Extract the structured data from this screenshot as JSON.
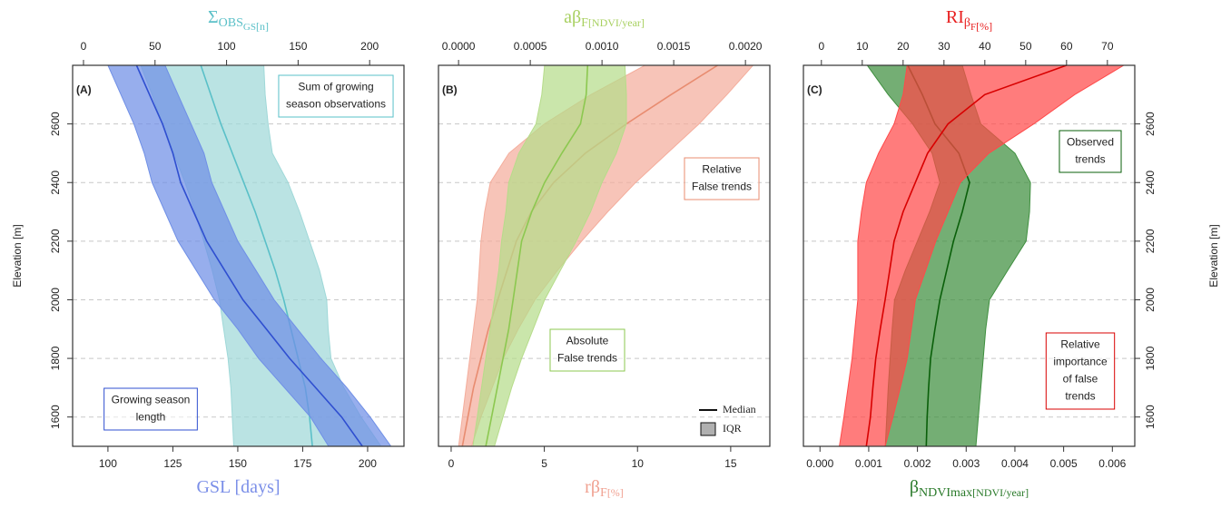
{
  "chart_data": [
    {
      "type": "band",
      "label": "(A)",
      "grid": true,
      "elevation": [
        1500,
        1600,
        1700,
        1800,
        1900,
        2000,
        2100,
        2200,
        2300,
        2400,
        2500,
        2600,
        2700,
        2800
      ],
      "ylim": [
        1500,
        2800
      ],
      "yticks": [
        1600,
        1800,
        2000,
        2200,
        2400,
        2600
      ],
      "ylabel": "Elevation [m]",
      "xlim": [
        86.4,
        214
      ],
      "xticks": [
        100,
        125,
        150,
        175,
        200
      ],
      "xlabel": [
        "GSL [days]"
      ],
      "xlabel_color": "#7b8fe8",
      "x2lim": [
        -7.6,
        224
      ],
      "x2ticks": [
        0,
        50,
        100,
        150,
        200
      ],
      "x2label": [
        "Σ",
        "OBS",
        "GS",
        "[n]"
      ],
      "x2label_color": "#5bc0c8",
      "series": [
        {
          "label": [
            "Sum of growing",
            "season observations"
          ],
          "axis": "x2",
          "color": "#9fd8d8",
          "median_color": "#5ac0c8",
          "low": [
            105,
            104,
            103,
            101,
            98,
            95,
            90,
            84,
            78,
            71,
            63,
            55,
            48,
            40
          ],
          "median": [
            160,
            158,
            155,
            150,
            145,
            140,
            134,
            127,
            120,
            112,
            104,
            96,
            89,
            82
          ],
          "high": [
            208,
            194,
            182,
            173,
            171,
            170,
            165,
            158,
            151,
            143,
            132,
            129,
            127,
            126
          ]
        },
        {
          "label": [
            "Growing season",
            "length"
          ],
          "axis": "x",
          "color": "#6f8fe6",
          "median_color": "#2f4fd0",
          "low": [
            185,
            178,
            168,
            158,
            150,
            141,
            134,
            127,
            122,
            117,
            114,
            110,
            105,
            100
          ],
          "median": [
            198,
            190,
            180,
            170,
            161,
            152,
            145,
            138,
            133,
            128,
            125,
            121,
            116,
            111
          ],
          "high": [
            209,
            201,
            192,
            182,
            173,
            164,
            157,
            150,
            145,
            140,
            137,
            132,
            127,
            122
          ]
        }
      ]
    },
    {
      "type": "band",
      "label": "(B)",
      "grid": true,
      "elevation": [
        1500,
        1600,
        1700,
        1800,
        1900,
        2000,
        2100,
        2200,
        2300,
        2400,
        2500,
        2600,
        2700,
        2800
      ],
      "ylim": [
        1500,
        2800
      ],
      "yticks": [
        1600,
        1800,
        2000,
        2200,
        2400,
        2600
      ],
      "xlim": [
        -0.68,
        17.1
      ],
      "xticks": [
        0,
        5,
        10,
        15
      ],
      "xlabel": [
        "rβ",
        "F",
        "[%]"
      ],
      "xlabel_color": "#f0a090",
      "x2lim": [
        -0.00014,
        0.00217
      ],
      "x2ticks": [
        {
          "value": 0,
          "label": "0.0000"
        },
        {
          "value": 0.0005,
          "label": "0.0005"
        },
        {
          "value": 0.001,
          "label": "0.0010"
        },
        {
          "value": 0.0015,
          "label": "0.0015"
        },
        {
          "value": 0.002,
          "label": "0.0020"
        }
      ],
      "x2label": [
        "aβ",
        "F",
        "[NDVI/year]"
      ],
      "x2label_color": "#a8d060",
      "legend": [
        "Median",
        "IQR"
      ],
      "series": [
        {
          "label": [
            "Relative",
            "False trends"
          ],
          "axis": "x",
          "color": "#f4ad9c",
          "median_color": "#e88c70",
          "low": [
            0.4,
            0.6,
            0.8,
            1.0,
            1.2,
            1.4,
            1.5,
            1.6,
            1.8,
            2.1,
            3.1,
            5.0,
            7.5,
            10.4
          ],
          "median": [
            0.6,
            0.9,
            1.2,
            1.6,
            2.0,
            2.5,
            3.0,
            3.5,
            4.3,
            5.5,
            7.2,
            9.4,
            11.8,
            14.3
          ],
          "high": [
            1.1,
            1.6,
            2.2,
            2.8,
            3.6,
            4.5,
            5.7,
            7.0,
            8.4,
            9.9,
            11.6,
            13.3,
            14.8,
            16.2
          ]
        },
        {
          "label": [
            "Absolute",
            "False trends"
          ],
          "axis": "x2",
          "color": "#b6dc8a",
          "median_color": "#8cc850",
          "low": [
            0.0001,
            0.00013,
            0.00016,
            0.00019,
            0.00022,
            0.00025,
            0.00028,
            0.0003,
            0.00033,
            0.00035,
            0.00042,
            0.00054,
            0.00058,
            0.0006
          ],
          "median": [
            0.00019,
            0.00023,
            0.00027,
            0.00031,
            0.00035,
            0.00038,
            0.00041,
            0.00044,
            0.00051,
            0.0006,
            0.00072,
            0.00085,
            0.00089,
            0.0009
          ],
          "high": [
            0.00025,
            0.00031,
            0.00037,
            0.00044,
            0.00052,
            0.0006,
            0.00071,
            0.00082,
            0.00092,
            0.001,
            0.0011,
            0.00117,
            0.00117,
            0.00116
          ]
        }
      ]
    },
    {
      "type": "band",
      "label": "(C)",
      "grid": true,
      "elevation": [
        1500,
        1600,
        1700,
        1800,
        1900,
        2000,
        2100,
        2200,
        2300,
        2400,
        2500,
        2600,
        2700,
        2800
      ],
      "ylim": [
        1500,
        2800
      ],
      "yticks": [
        1600,
        1800,
        2000,
        2200,
        2400,
        2600
      ],
      "ylabel": "Elevation [m]",
      "xlim": [
        -0.00034,
        0.00646
      ],
      "xticks": [
        {
          "value": 0,
          "label": "0.000"
        },
        {
          "value": 0.001,
          "label": "0.001"
        },
        {
          "value": 0.002,
          "label": "0.002"
        },
        {
          "value": 0.003,
          "label": "0.003"
        },
        {
          "value": 0.004,
          "label": "0.004"
        },
        {
          "value": 0.005,
          "label": "0.005"
        },
        {
          "value": 0.006,
          "label": "0.006"
        }
      ],
      "xlabel": [
        "β",
        "NDVImax",
        "[NDVI/year]"
      ],
      "xlabel_color": "#2a7a2a",
      "x2lim": [
        -4.4,
        76.7
      ],
      "x2ticks": [
        0,
        10,
        20,
        30,
        40,
        50,
        60,
        70
      ],
      "x2label": [
        "RI",
        "β",
        "F",
        "[%]"
      ],
      "x2label_color": "#e82020",
      "series": [
        {
          "label": [
            "Observed",
            "trends"
          ],
          "axis": "x",
          "color": "#3f8f3f",
          "median_color": "#0a5f0a",
          "low": [
            0.00134,
            0.00137,
            0.0014,
            0.00144,
            0.00148,
            0.00153,
            0.00175,
            0.002,
            0.00225,
            0.00246,
            0.0023,
            0.0019,
            0.0014,
            0.00097
          ],
          "median": [
            0.00218,
            0.0022,
            0.00223,
            0.00227,
            0.00236,
            0.00246,
            0.0026,
            0.00274,
            0.00292,
            0.00307,
            0.00285,
            0.00236,
            0.0021,
            0.0018
          ],
          "high": [
            0.0032,
            0.00325,
            0.0033,
            0.00335,
            0.0034,
            0.00348,
            0.00385,
            0.00423,
            0.0043,
            0.00432,
            0.004,
            0.0033,
            0.0031,
            0.00292
          ]
        },
        {
          "label": [
            "Relative",
            "importance",
            "of false",
            "trends"
          ],
          "axis": "x2",
          "color": "#ff4a4a",
          "median_color": "#d80000",
          "low": [
            4.4,
            5.5,
            6.5,
            7.5,
            8.2,
            8.9,
            8.9,
            8.9,
            9.8,
            11,
            14,
            17.8,
            20,
            21
          ],
          "median": [
            11,
            12,
            12.6,
            13.3,
            14.4,
            15.6,
            16.7,
            17.8,
            20,
            23,
            26,
            31,
            40,
            60
          ],
          "high": [
            15.6,
            17.5,
            19.3,
            21,
            22,
            23,
            25.5,
            28,
            31,
            34,
            41,
            52,
            62,
            74
          ]
        }
      ]
    }
  ]
}
